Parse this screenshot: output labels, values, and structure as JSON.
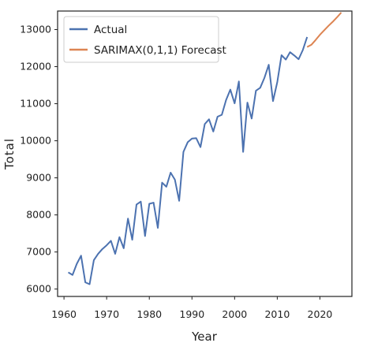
{
  "chart_data": {
    "type": "line",
    "xlabel": "Year",
    "ylabel": "Total",
    "xlim": [
      1958.5,
      2027.5
    ],
    "ylim": [
      5800,
      13500
    ],
    "xticks": [
      1960,
      1970,
      1980,
      1990,
      2000,
      2010,
      2020
    ],
    "yticks": [
      6000,
      7000,
      8000,
      9000,
      10000,
      11000,
      12000,
      13000
    ],
    "grid": false,
    "legend_position": "top-left",
    "series": [
      {
        "name": "Actual",
        "color": "#4c72b0",
        "x": [
          1961,
          1962,
          1963,
          1964,
          1965,
          1966,
          1967,
          1968,
          1969,
          1970,
          1971,
          1972,
          1973,
          1974,
          1975,
          1976,
          1977,
          1978,
          1979,
          1980,
          1981,
          1982,
          1983,
          1984,
          1985,
          1986,
          1987,
          1988,
          1989,
          1990,
          1991,
          1992,
          1993,
          1994,
          1995,
          1996,
          1997,
          1998,
          1999,
          2000,
          2001,
          2002,
          2003,
          2004,
          2005,
          2006,
          2007,
          2008,
          2009,
          2010,
          2011,
          2012,
          2013,
          2014,
          2015,
          2016,
          2017
        ],
        "y": [
          6450,
          6380,
          6680,
          6900,
          6180,
          6130,
          6780,
          6950,
          7080,
          7180,
          7300,
          6950,
          7400,
          7100,
          7900,
          7330,
          8280,
          8360,
          7430,
          8300,
          8330,
          7650,
          8870,
          8760,
          9140,
          8950,
          8380,
          9700,
          9960,
          10060,
          10070,
          9830,
          10450,
          10580,
          10250,
          10650,
          10700,
          11100,
          11380,
          11010,
          11600,
          9700,
          11030,
          10600,
          11350,
          11430,
          11700,
          12050,
          11070,
          11580,
          12310,
          12190,
          12390,
          12300,
          12200,
          12450,
          12800
        ]
      },
      {
        "name": "SARIMAX(0,1,1) Forecast",
        "color": "#dd8452",
        "x": [
          2017,
          2018,
          2019,
          2020,
          2021,
          2022,
          2023,
          2024,
          2025
        ],
        "y": [
          12530,
          12590,
          12720,
          12860,
          12980,
          13100,
          13210,
          13330,
          13460
        ]
      }
    ]
  }
}
